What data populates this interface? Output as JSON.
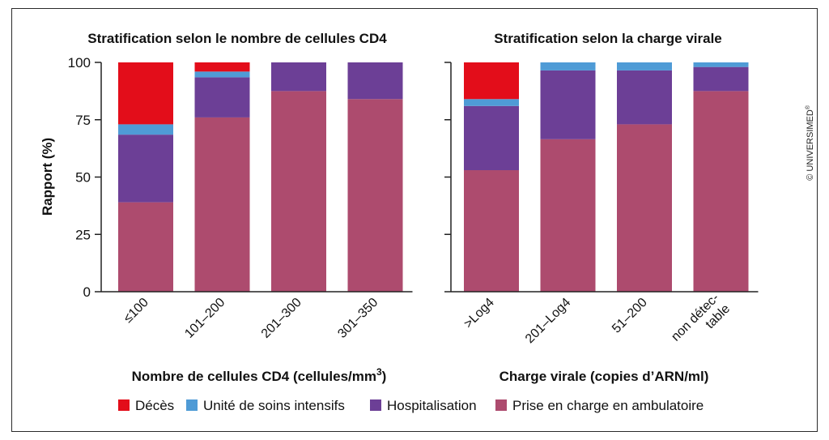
{
  "copyright": "© UNIVERSIMED",
  "copyright_mark": "®",
  "y_axis_label": "Rapport (%)",
  "legend": [
    {
      "name": "Décès",
      "color": "#e30d1a"
    },
    {
      "name": "Unité de soins intensifs",
      "color": "#4f9bd6"
    },
    {
      "name": "Hospitalisation",
      "color": "#6c3f96"
    },
    {
      "name": "Prise en charge en ambulatoire",
      "color": "#ad4b6e"
    }
  ],
  "chart_data": [
    {
      "type": "bar",
      "stacked": true,
      "title": "Stratification selon le nombre de cellules CD4",
      "xlabel": "Nombre de cellules CD4 (cellules/mm",
      "xlabel_sup": "3",
      "xlabel_end": ")",
      "ylabel": "Rapport (%)",
      "ylim": [
        0,
        100
      ],
      "yticks": [
        "0",
        "25",
        "50",
        "75",
        "100"
      ],
      "categories": [
        "≤100",
        "101–200",
        "201–300",
        "301–350"
      ],
      "series": [
        {
          "name": "Prise en charge en ambulatoire",
          "values": [
            39,
            76,
            87.5,
            84
          ]
        },
        {
          "name": "Hospitalisation",
          "values": [
            29.5,
            17.5,
            12.5,
            16
          ]
        },
        {
          "name": "Unité de soins intensifs",
          "values": [
            4.5,
            2.5,
            0,
            0
          ]
        },
        {
          "name": "Décès",
          "values": [
            27,
            4,
            0,
            0
          ]
        }
      ]
    },
    {
      "type": "bar",
      "stacked": true,
      "title": "Stratification selon la charge virale",
      "xlabel": "Charge virale (copies d’ARN/ml)",
      "ylim": [
        0,
        100
      ],
      "yticks": [
        "0",
        "25",
        "50",
        "75",
        "100"
      ],
      "categories": [
        ">Log4",
        "201–Log4",
        "51–200",
        "non détec-\ntable"
      ],
      "series": [
        {
          "name": "Prise en charge en ambulatoire",
          "values": [
            53,
            66.5,
            73,
            87.5
          ]
        },
        {
          "name": "Hospitalisation",
          "values": [
            28,
            30,
            23.5,
            10.5
          ]
        },
        {
          "name": "Unité de soins intensifs",
          "values": [
            3,
            3.5,
            3.5,
            2
          ]
        },
        {
          "name": "Décès",
          "values": [
            16,
            0,
            0,
            0
          ]
        }
      ]
    }
  ]
}
